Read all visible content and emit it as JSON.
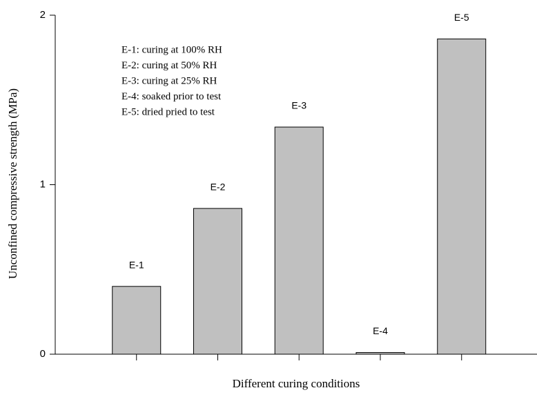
{
  "chart_data": {
    "type": "bar",
    "x_label": "Different curing conditions",
    "y_label": "Unconfined compressive strength (MPa)",
    "categories": [
      "E-1",
      "E-2",
      "E-3",
      "E-4",
      "E-5"
    ],
    "values": [
      0.4,
      0.86,
      1.34,
      0.01,
      1.86
    ],
    "color": "#c0c0c0",
    "ylim": [
      0,
      2
    ],
    "yticks": [
      0,
      1,
      2
    ],
    "annotations": [
      "E-1: curing at 100% RH",
      "E-2: curing at 50% RH",
      "E-3: curing at 25% RH",
      "E-4: soaked prior to test",
      "E-5: dried pried to test"
    ]
  }
}
